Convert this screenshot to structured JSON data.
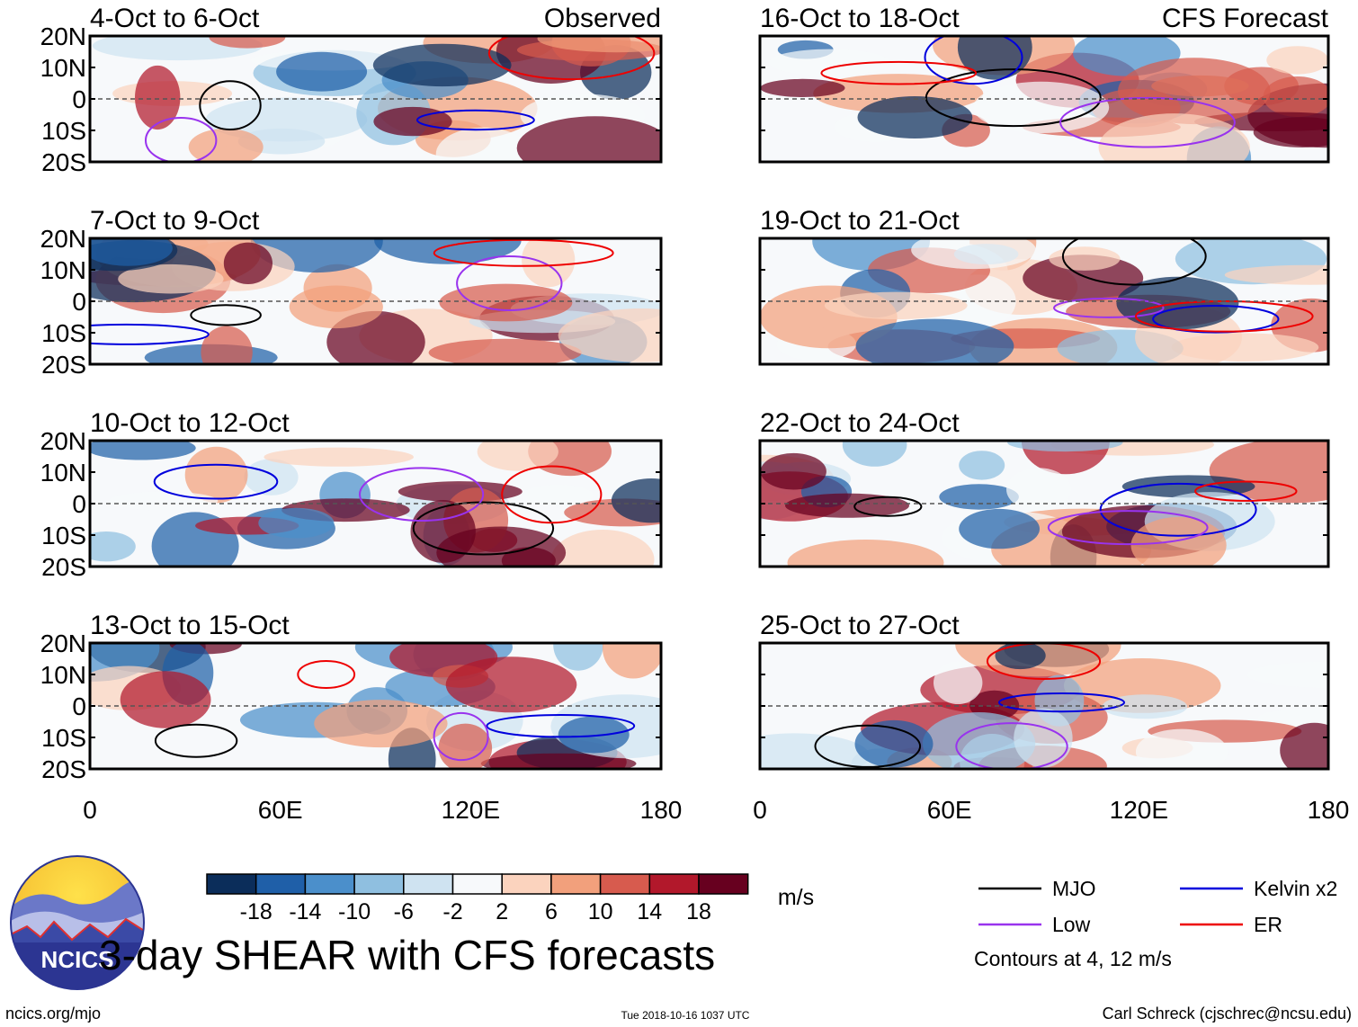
{
  "chart_data": {
    "type": "heatmap",
    "title": "3-day SHEAR with CFS forecasts",
    "units": "m/s",
    "observed_label": "Observed",
    "forecast_label": "CFS Forecast",
    "xlim": [
      0,
      180
    ],
    "ylim": [
      -20,
      20
    ],
    "x_ticks": [
      "0",
      "60E",
      "120E",
      "180"
    ],
    "y_ticks": [
      "20N",
      "10N",
      "0",
      "10S",
      "20S"
    ],
    "panels": [
      {
        "period": "4-Oct to 6-Oct",
        "kind": "Observed"
      },
      {
        "period": "16-Oct to 18-Oct",
        "kind": "CFS Forecast"
      },
      {
        "period": "7-Oct to 9-Oct",
        "kind": "Observed"
      },
      {
        "period": "19-Oct to 21-Oct",
        "kind": "CFS Forecast"
      },
      {
        "period": "10-Oct to 12-Oct",
        "kind": "Observed"
      },
      {
        "period": "22-Oct to 24-Oct",
        "kind": "CFS Forecast"
      },
      {
        "period": "13-Oct to 15-Oct",
        "kind": "Observed"
      },
      {
        "period": "25-Oct to 27-Oct",
        "kind": "CFS Forecast"
      }
    ],
    "colorbar": {
      "ticks": [
        "-18",
        "-14",
        "-10",
        "-6",
        "-2",
        "2",
        "6",
        "10",
        "14",
        "18"
      ],
      "colors": [
        "#0b2d5a",
        "#1f5fa8",
        "#4b8fcb",
        "#8fbfe0",
        "#cfe3f1",
        "#f7f9fb",
        "#fbd3be",
        "#f2a07c",
        "#d75b4e",
        "#b2182b",
        "#67001f"
      ]
    },
    "legend": [
      {
        "label": "MJO",
        "color": "#000000"
      },
      {
        "label": "Kelvin x2",
        "color": "#0000dd"
      },
      {
        "label": "Low",
        "color": "#9933ee"
      },
      {
        "label": "ER",
        "color": "#ee0000"
      }
    ],
    "contour_note": "Contours at 4, 12 m/s"
  },
  "footer": {
    "logo_text": "NCICS",
    "site": "ncics.org/mjo",
    "timestamp": "Tue 2018-10-16 1037 UTC",
    "credit": "Carl Schreck (cjschrec@ncsu.edu)"
  }
}
